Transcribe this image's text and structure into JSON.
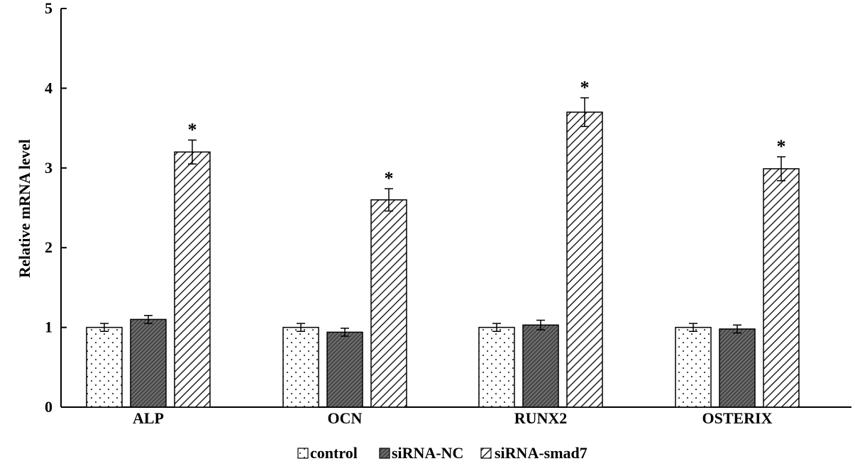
{
  "chart_data": {
    "type": "bar",
    "title": "",
    "xlabel": "",
    "ylabel": "Relative mRNA level",
    "ylim": [
      0,
      5
    ],
    "yticks": [
      0,
      1,
      2,
      3,
      4,
      5
    ],
    "categories": [
      "ALP",
      "OCN",
      "RUNX2",
      "OSTERIX"
    ],
    "series": [
      {
        "name": "control",
        "values": [
          1.0,
          1.0,
          1.0,
          1.0
        ],
        "errors": [
          0.05,
          0.05,
          0.05,
          0.05
        ],
        "pattern": "dots"
      },
      {
        "name": "siRNA-NC",
        "values": [
          1.1,
          0.94,
          1.03,
          0.98
        ],
        "errors": [
          0.05,
          0.05,
          0.06,
          0.05
        ],
        "pattern": "dense-hatch"
      },
      {
        "name": "siRNA-smad7",
        "values": [
          3.2,
          2.6,
          3.7,
          2.99
        ],
        "errors": [
          0.15,
          0.14,
          0.18,
          0.15
        ],
        "pattern": "diagonal",
        "annotation": "*"
      }
    ],
    "legend_position": "bottom-center",
    "grid": false
  }
}
